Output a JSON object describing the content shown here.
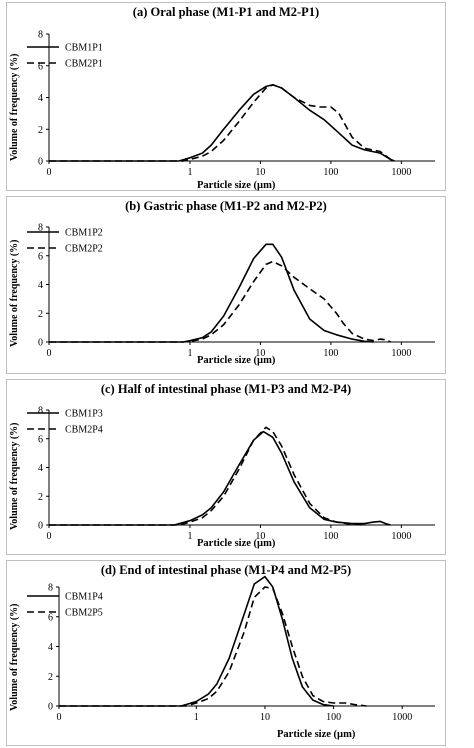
{
  "chart_data": [
    {
      "type": "line",
      "title": "(a) Oral phase (M1-P1 and M2-P1)",
      "xlabel": "Particle size (µm)",
      "ylabel": "Volume of frequency (%)",
      "xscale": "log",
      "xlim": [
        0.01,
        3000
      ],
      "ylim": [
        0,
        8
      ],
      "x_ticks": [
        "0",
        "1",
        "10",
        "100",
        "1000"
      ],
      "y_ticks": [
        "0",
        "2",
        "4",
        "6",
        "8"
      ],
      "grid": false,
      "legend_position": "top-left",
      "series": [
        {
          "name": "CBM1P1",
          "style": "solid",
          "x": [
            0.01,
            0.7,
            1.0,
            1.5,
            2,
            3,
            5,
            8,
            12,
            15,
            20,
            30,
            50,
            80,
            120,
            200,
            300,
            500,
            700,
            800
          ],
          "y": [
            0,
            0,
            0.2,
            0.5,
            1.0,
            2.0,
            3.2,
            4.2,
            4.7,
            4.8,
            4.6,
            4.0,
            3.2,
            2.6,
            1.9,
            1.0,
            0.7,
            0.5,
            0.1,
            0
          ]
        },
        {
          "name": "CBM2P1",
          "style": "dashed",
          "x": [
            0.01,
            0.8,
            1.0,
            1.5,
            2,
            3,
            5,
            8,
            12,
            15,
            20,
            30,
            50,
            70,
            100,
            130,
            200,
            300,
            500,
            700,
            800
          ],
          "y": [
            0,
            0,
            0.1,
            0.3,
            0.6,
            1.3,
            2.5,
            3.7,
            4.6,
            4.8,
            4.6,
            4.0,
            3.5,
            3.4,
            3.4,
            3.0,
            1.5,
            0.8,
            0.6,
            0.1,
            0
          ]
        }
      ]
    },
    {
      "type": "line",
      "title": "(b) Gastric phase (M1-P2 and M2-P2)",
      "xlabel": "Particle size (µm)",
      "ylabel": "Volume of frequency (%)",
      "xscale": "log",
      "xlim": [
        0.01,
        3000
      ],
      "ylim": [
        0,
        8
      ],
      "x_ticks": [
        "0",
        "1",
        "10",
        "100",
        "1000"
      ],
      "y_ticks": [
        "0",
        "2",
        "4",
        "6",
        "8"
      ],
      "grid": false,
      "legend_position": "top-left",
      "series": [
        {
          "name": "CBM1P2",
          "style": "solid",
          "x": [
            0.01,
            0.8,
            1.0,
            1.5,
            2,
            3,
            5,
            8,
            12,
            15,
            20,
            30,
            50,
            80,
            120,
            200,
            300,
            400
          ],
          "y": [
            0,
            0,
            0.1,
            0.3,
            0.7,
            1.8,
            3.8,
            5.8,
            6.8,
            6.8,
            5.9,
            3.6,
            1.6,
            0.8,
            0.5,
            0.2,
            0.05,
            0
          ]
        },
        {
          "name": "CBM2P2",
          "style": "dashed",
          "x": [
            0.01,
            0.8,
            1.0,
            1.5,
            2,
            3,
            5,
            8,
            12,
            15,
            20,
            30,
            50,
            80,
            120,
            150,
            200,
            300,
            400,
            500,
            600,
            700
          ],
          "y": [
            0,
            0,
            0.05,
            0.2,
            0.5,
            1.2,
            2.6,
            4.2,
            5.4,
            5.6,
            5.3,
            4.5,
            3.7,
            3.0,
            2.0,
            1.3,
            0.6,
            0.2,
            0.1,
            0.2,
            0.15,
            0
          ]
        }
      ]
    },
    {
      "type": "line",
      "title": "(c) Half of intestinal phase (M1-P3 and M2-P4)",
      "xlabel": "Particle size (µm)",
      "ylabel": "Volume of frequency (%)",
      "xscale": "log",
      "xlim": [
        0.01,
        3000
      ],
      "ylim": [
        0,
        8
      ],
      "x_ticks": [
        "0",
        "1",
        "10",
        "100",
        "1000"
      ],
      "y_ticks": [
        "0",
        "2",
        "4",
        "6",
        "8"
      ],
      "grid": false,
      "legend_position": "top-left",
      "series": [
        {
          "name": "CBM1P3",
          "style": "solid",
          "x": [
            0.01,
            0.6,
            1.0,
            1.5,
            2,
            3,
            5,
            8,
            11,
            15,
            20,
            30,
            50,
            80,
            120,
            200,
            300,
            400,
            500,
            600,
            700
          ],
          "y": [
            0,
            0,
            0.3,
            0.7,
            1.2,
            2.3,
            4.2,
            5.9,
            6.5,
            6.1,
            5.0,
            3.0,
            1.2,
            0.4,
            0.2,
            0.1,
            0.1,
            0.2,
            0.25,
            0.1,
            0
          ]
        },
        {
          "name": "CBM2P4",
          "style": "dashed",
          "x": [
            0.01,
            0.7,
            1.0,
            1.5,
            2,
            3,
            5,
            8,
            12,
            15,
            20,
            30,
            50,
            80,
            120,
            200,
            300
          ],
          "y": [
            0,
            0,
            0.2,
            0.5,
            1.0,
            2.0,
            3.9,
            5.9,
            6.8,
            6.5,
            5.5,
            3.5,
            1.5,
            0.5,
            0.2,
            0.05,
            0
          ]
        }
      ]
    },
    {
      "type": "line",
      "title": "(d) End of intestinal phase (M1-P4 and M2-P5)",
      "xlabel": "Particle size (µm)",
      "ylabel": "Volume of frequency (%)",
      "xscale": "log",
      "xlim": [
        0.01,
        3000
      ],
      "ylim": [
        0,
        8
      ],
      "x_ticks": [
        "0",
        "1",
        "10",
        "100",
        "1000"
      ],
      "y_ticks": [
        "0",
        "2",
        "4",
        "6",
        "8"
      ],
      "grid": false,
      "legend_position": "top-left",
      "series": [
        {
          "name": "CBM1P4",
          "style": "solid",
          "x": [
            0.01,
            0.6,
            1.0,
            1.5,
            2,
            3,
            5,
            7,
            10,
            13,
            18,
            25,
            35,
            50,
            70,
            100
          ],
          "y": [
            0,
            0,
            0.3,
            0.8,
            1.5,
            3.2,
            6.2,
            8.2,
            8.7,
            8.0,
            5.8,
            3.2,
            1.3,
            0.4,
            0.1,
            0
          ]
        },
        {
          "name": "CBM2P5",
          "style": "dashed",
          "x": [
            0.01,
            0.7,
            1.0,
            1.5,
            2,
            3,
            5,
            7,
            10,
            13,
            18,
            25,
            35,
            50,
            70,
            100,
            150,
            200,
            250,
            300
          ],
          "y": [
            0,
            0,
            0.2,
            0.5,
            1.0,
            2.3,
            5.0,
            7.3,
            8.0,
            7.9,
            6.2,
            4.0,
            2.0,
            0.7,
            0.3,
            0.2,
            0.2,
            0.1,
            0.05,
            0
          ]
        }
      ]
    }
  ]
}
